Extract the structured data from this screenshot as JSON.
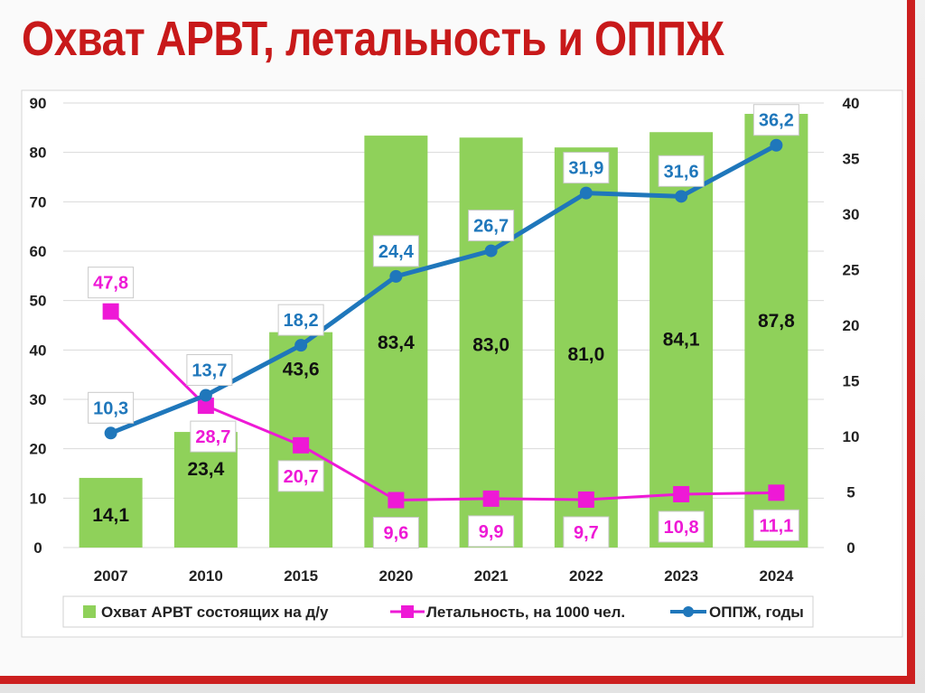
{
  "slide_title": "Охват АРВТ, летальность и ОППЖ",
  "colors": {
    "title": "#c8191a",
    "bar": "#8fd15a",
    "lethality": "#ee19d6",
    "oppzh": "#1f77bb"
  },
  "chart_data": {
    "type": "bar+line",
    "title": "Охват АРВТ, летальность и ОППЖ",
    "categories": [
      "2007",
      "2010",
      "2015",
      "2020",
      "2021",
      "2022",
      "2023",
      "2024"
    ],
    "y_left": {
      "ticks": [
        "0",
        "10",
        "20",
        "30",
        "40",
        "50",
        "60",
        "70",
        "80",
        "90"
      ],
      "ylim": [
        0,
        90
      ]
    },
    "y_right": {
      "ticks": [
        "0",
        "5",
        "10",
        "15",
        "20",
        "25",
        "30",
        "35",
        "40"
      ],
      "ylim": [
        0,
        40
      ]
    },
    "grid": true,
    "legend_position": "bottom",
    "series": [
      {
        "name": "Охват АРВТ состоящих на д/у",
        "kind": "bar",
        "axis": "left",
        "values": [
          14.1,
          23.4,
          43.6,
          83.4,
          83.0,
          81.0,
          84.1,
          87.8
        ],
        "labels": [
          "14,1",
          "23,4",
          "43,6",
          "83,4",
          "83,0",
          "81,0",
          "84,1",
          "87,8"
        ]
      },
      {
        "name": "Летальность, на 1000 чел.",
        "kind": "line",
        "marker": "square",
        "axis": "left",
        "values": [
          47.8,
          28.7,
          20.7,
          9.6,
          9.9,
          9.7,
          10.8,
          11.1
        ],
        "labels": [
          "47,8",
          "28,7",
          "20,7",
          "9,6",
          "9,9",
          "9,7",
          "10,8",
          "11,1"
        ]
      },
      {
        "name": "ОППЖ, годы",
        "kind": "line",
        "marker": "circle",
        "axis": "right",
        "values": [
          10.3,
          13.7,
          18.2,
          24.4,
          26.7,
          31.9,
          31.6,
          36.2
        ],
        "labels": [
          "10,3",
          "13,7",
          "18,2",
          "24,4",
          "26,7",
          "31,9",
          "31,6",
          "36,2"
        ]
      }
    ]
  }
}
